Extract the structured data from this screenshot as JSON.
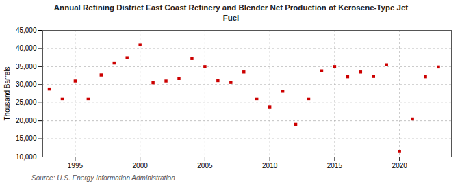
{
  "chart_data": {
    "type": "scatter",
    "title": "Annual Refining District East Coast Refinery and Blender Net Production of Kerosene-Type Jet\nFuel",
    "ylabel": "Thousand Barrels",
    "source": "Source: U.S. Energy Information Administration",
    "x": [
      1993,
      1994,
      1995,
      1996,
      1997,
      1998,
      1999,
      2000,
      2001,
      2002,
      2003,
      2004,
      2005,
      2006,
      2007,
      2008,
      2009,
      2010,
      2011,
      2012,
      2013,
      2014,
      2015,
      2016,
      2017,
      2018,
      2019,
      2020,
      2021,
      2022,
      2023
    ],
    "values": [
      28800,
      26000,
      31000,
      26000,
      32700,
      36000,
      37400,
      41000,
      30500,
      31000,
      31700,
      37200,
      35000,
      31100,
      30600,
      33500,
      26000,
      23800,
      28200,
      19000,
      26000,
      33800,
      35000,
      32200,
      33500,
      32300,
      35500,
      11500,
      20500,
      32200,
      34900
    ],
    "color": "#cc0000",
    "marker": "square",
    "xlim": [
      1992.5,
      2024
    ],
    "xticks": [
      1995,
      2000,
      2005,
      2010,
      2015,
      2020
    ],
    "ylim": [
      10000,
      45000
    ],
    "yticks": [
      {
        "value": 10000,
        "label": "10,000"
      },
      {
        "value": 15000,
        "label": "15,000"
      },
      {
        "value": 20000,
        "label": "20,000"
      },
      {
        "value": 25000,
        "label": "25,000"
      },
      {
        "value": 30000,
        "label": "30,000"
      },
      {
        "value": 35000,
        "label": "35,000"
      },
      {
        "value": 40000,
        "label": "40,000"
      },
      {
        "value": 45000,
        "label": "45,000"
      }
    ],
    "grid": true
  }
}
